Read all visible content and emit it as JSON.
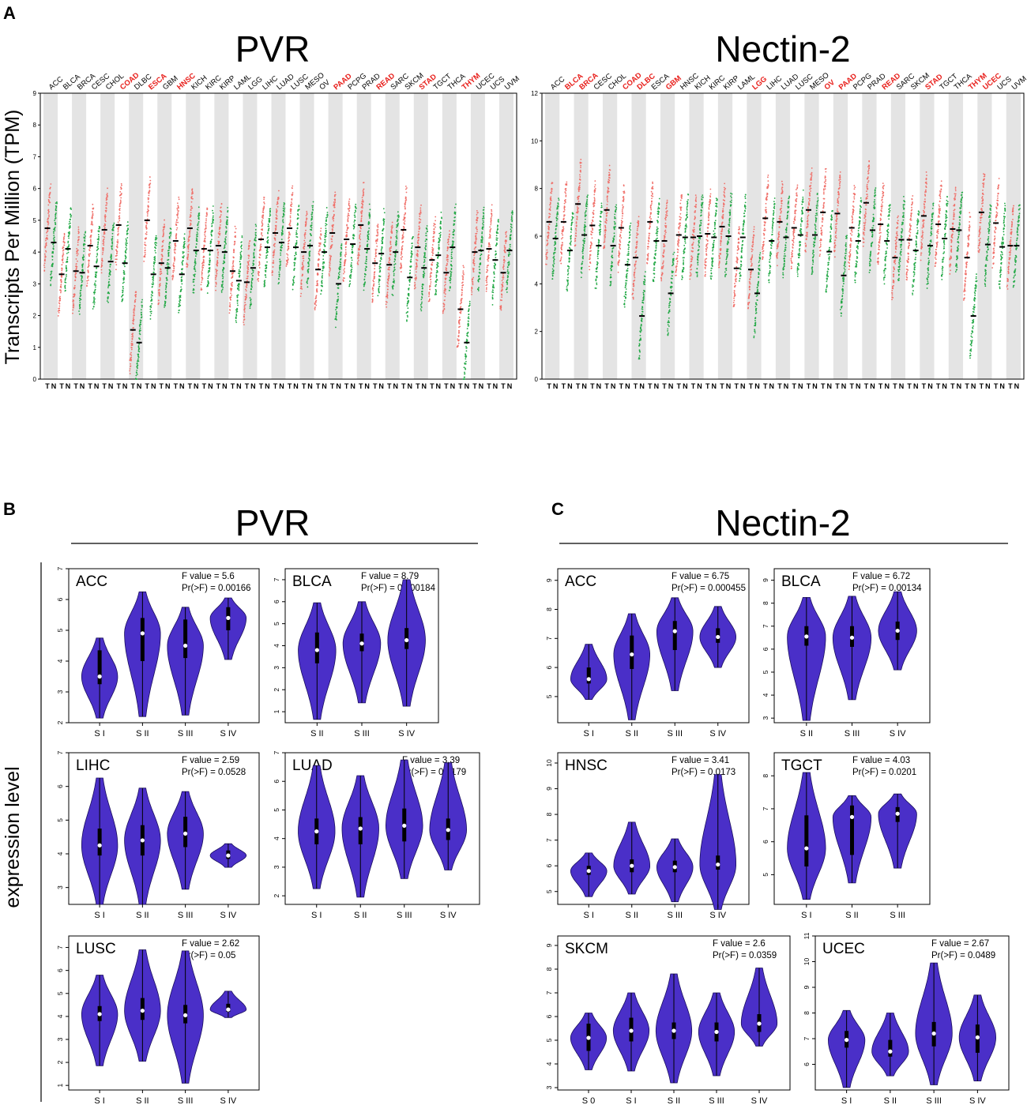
{
  "colors": {
    "tumor": "#f0706a",
    "normal": "#22a845",
    "highlight": "#e8201c",
    "violin": "#4a2fc8",
    "violin_outline": "#1a0e5e",
    "band": "#e4e4e4"
  },
  "panels": {
    "A": {
      "label": "A",
      "y_axis_label": "Transcripts Per Million (TPM)",
      "tumor_letter": "T",
      "normal_letter": "N"
    },
    "B": {
      "label": "B",
      "title": "PVR",
      "y_axis_label": "expression level"
    },
    "C": {
      "label": "C",
      "title": "Nectin-2"
    }
  },
  "chart_data": [
    {
      "id": "pvr-tpm",
      "type": "scatter",
      "title": "PVR",
      "ylabel": "Transcripts Per Million (TPM)",
      "ylim": [
        0,
        9
      ],
      "yticks": [
        0,
        1,
        2,
        3,
        4,
        5,
        6,
        7,
        8,
        9
      ],
      "categories": [
        "ACC",
        "BLCA",
        "BRCA",
        "CESC",
        "CHOL",
        "COAD",
        "DLBC",
        "ESCA",
        "GBM",
        "HNSC",
        "KICH",
        "KIRC",
        "KIRP",
        "LAML",
        "LGG",
        "LIHC",
        "LUAD",
        "LUSC",
        "MESO",
        "OV",
        "PAAD",
        "PCPG",
        "PRAD",
        "READ",
        "SARC",
        "SKCM",
        "STAD",
        "TGCT",
        "THCA",
        "THYM",
        "UCEC",
        "UCS",
        "UVM"
      ],
      "highlighted": [
        "COAD",
        "ESCA",
        "HNSC",
        "PAAD",
        "READ",
        "STAD",
        "THYM"
      ],
      "series": [
        {
          "name": "Tumor (T)",
          "median_values": [
            4.75,
            3.3,
            3.4,
            4.2,
            4.7,
            4.85,
            1.55,
            5.0,
            3.65,
            4.35,
            4.75,
            4.1,
            4.2,
            3.4,
            3.05,
            4.4,
            4.6,
            4.75,
            4.0,
            3.45,
            4.6,
            4.4,
            4.85,
            3.65,
            3.6,
            4.7,
            4.15,
            3.75,
            3.35,
            2.2,
            4.0,
            4.1,
            3.35
          ]
        },
        {
          "name": "Normal (N)",
          "median_values": [
            4.3,
            4.1,
            3.35,
            3.55,
            3.7,
            3.65,
            1.15,
            3.3,
            3.5,
            3.3,
            4.05,
            4.05,
            4.0,
            3.1,
            3.5,
            4.15,
            4.3,
            4.15,
            4.2,
            4.0,
            3.0,
            4.25,
            4.1,
            3.95,
            4.0,
            3.2,
            3.5,
            3.9,
            4.15,
            1.15,
            4.05,
            3.75,
            4.05
          ]
        }
      ]
    },
    {
      "id": "nectin2-tpm",
      "type": "scatter",
      "title": "Nectin-2",
      "ylabel": "Transcripts Per Million (TPM)",
      "ylim": [
        0,
        12
      ],
      "yticks": [
        0,
        2,
        4,
        6,
        8,
        10,
        12
      ],
      "categories": [
        "ACC",
        "BLCA",
        "BRCA",
        "CESC",
        "CHOL",
        "COAD",
        "DLBC",
        "ESCA",
        "GBM",
        "HNSC",
        "KICH",
        "KIRC",
        "KIRP",
        "LAML",
        "LGG",
        "LIHC",
        "LUAD",
        "LUSC",
        "MESO",
        "OV",
        "PAAD",
        "PCPG",
        "PRAD",
        "READ",
        "SARC",
        "SKCM",
        "STAD",
        "TGCT",
        "THCA",
        "THYM",
        "UCEC",
        "UCS",
        "UVM"
      ],
      "highlighted": [
        "BLCA",
        "BRCA",
        "COAD",
        "DLBC",
        "GBM",
        "LGG",
        "OV",
        "PAAD",
        "READ",
        "STAD",
        "THYM",
        "UCEC"
      ],
      "series": [
        {
          "name": "Tumor (T)",
          "median_values": [
            6.6,
            6.6,
            7.35,
            6.45,
            7.1,
            6.35,
            5.1,
            6.6,
            5.8,
            6.05,
            5.95,
            6.1,
            6.4,
            4.65,
            4.6,
            6.75,
            6.6,
            6.35,
            7.1,
            7.0,
            6.95,
            6.35,
            7.4,
            6.5,
            5.1,
            5.85,
            6.85,
            6.5,
            6.3,
            5.1,
            7.0,
            6.55,
            5.6
          ]
        },
        {
          "name": "Normal (N)",
          "median_values": [
            5.9,
            5.4,
            6.05,
            5.6,
            5.6,
            4.8,
            2.65,
            5.8,
            3.6,
            5.95,
            6.0,
            5.95,
            6.0,
            5.95,
            3.6,
            5.8,
            5.95,
            6.05,
            6.05,
            5.35,
            4.35,
            5.8,
            6.25,
            5.8,
            5.85,
            5.4,
            5.6,
            5.9,
            6.25,
            2.65,
            5.65,
            5.55,
            5.6
          ]
        }
      ]
    },
    {
      "id": "pvr-acc",
      "type": "violin",
      "cancer": "ACC",
      "f_label": "F value = 5.6",
      "p_label": "Pr(>F) = 0.00166",
      "ylim": [
        2,
        7
      ],
      "yticks": [
        2,
        3,
        4,
        5,
        6,
        7
      ],
      "categories": [
        "S I",
        "S II",
        "S III",
        "S IV"
      ],
      "stats": [
        {
          "min": 2.15,
          "q1": 3.25,
          "median": 3.5,
          "q3": 4.35,
          "max": 4.75
        },
        {
          "min": 2.2,
          "q1": 4.0,
          "median": 4.9,
          "q3": 5.4,
          "max": 6.25
        },
        {
          "min": 2.25,
          "q1": 4.1,
          "median": 4.5,
          "q3": 5.35,
          "max": 5.75
        },
        {
          "min": 4.05,
          "q1": 5.0,
          "median": 5.4,
          "q3": 5.75,
          "max": 6.05
        }
      ]
    },
    {
      "id": "pvr-blca",
      "type": "violin",
      "cancer": "BLCA",
      "f_label": "F value = 8.79",
      "p_label": "Pr(>F) = 0.000184",
      "ylim": [
        0.5,
        7.5
      ],
      "yticks": [
        1,
        2,
        3,
        4,
        5,
        6,
        7
      ],
      "categories": [
        "S II",
        "S III",
        "S IV"
      ],
      "stats": [
        {
          "min": 0.65,
          "q1": 3.2,
          "median": 3.8,
          "q3": 4.6,
          "max": 5.95
        },
        {
          "min": 1.4,
          "q1": 3.75,
          "median": 4.1,
          "q3": 4.55,
          "max": 6.0
        },
        {
          "min": 1.25,
          "q1": 3.85,
          "median": 4.25,
          "q3": 4.8,
          "max": 7.0
        }
      ]
    },
    {
      "id": "pvr-lihc",
      "type": "violin",
      "cancer": "LIHC",
      "f_label": "F value = 2.59",
      "p_label": "Pr(>F) = 0.0528",
      "ylim": [
        2.5,
        7
      ],
      "yticks": [
        3,
        4,
        5,
        6,
        7
      ],
      "categories": [
        "S I",
        "S II",
        "S III",
        "S IV"
      ],
      "stats": [
        {
          "min": 2.5,
          "q1": 3.95,
          "median": 4.25,
          "q3": 4.75,
          "max": 6.25
        },
        {
          "min": 2.5,
          "q1": 3.95,
          "median": 4.4,
          "q3": 4.85,
          "max": 5.95
        },
        {
          "min": 2.95,
          "q1": 4.2,
          "median": 4.6,
          "q3": 5.1,
          "max": 5.85
        },
        {
          "min": 3.6,
          "q1": 3.85,
          "median": 3.95,
          "q3": 4.1,
          "max": 4.3
        }
      ]
    },
    {
      "id": "pvr-luad",
      "type": "violin",
      "cancer": "LUAD",
      "f_label": "F value = 3.39",
      "p_label": "Pr(>F) = 0.0179",
      "ylim": [
        1.7,
        7
      ],
      "yticks": [
        2,
        3,
        4,
        5,
        6,
        7
      ],
      "categories": [
        "S I",
        "S II",
        "S III",
        "S IV"
      ],
      "stats": [
        {
          "min": 2.25,
          "q1": 3.8,
          "median": 4.25,
          "q3": 4.7,
          "max": 6.55
        },
        {
          "min": 1.95,
          "q1": 3.8,
          "median": 4.35,
          "q3": 4.75,
          "max": 6.2
        },
        {
          "min": 2.6,
          "q1": 3.9,
          "median": 4.45,
          "q3": 5.05,
          "max": 6.75
        },
        {
          "min": 2.9,
          "q1": 3.95,
          "median": 4.3,
          "q3": 4.7,
          "max": 6.65
        }
      ]
    },
    {
      "id": "pvr-lusc",
      "type": "violin",
      "cancer": "LUSC",
      "f_label": "F value = 2.62",
      "p_label": "Pr(>F) = 0.05",
      "ylim": [
        0.8,
        7.5
      ],
      "yticks": [
        1,
        2,
        3,
        4,
        5,
        6,
        7
      ],
      "categories": [
        "S I",
        "S II",
        "S III",
        "S IV"
      ],
      "stats": [
        {
          "min": 1.85,
          "q1": 3.8,
          "median": 4.1,
          "q3": 4.45,
          "max": 5.8
        },
        {
          "min": 2.05,
          "q1": 3.85,
          "median": 4.25,
          "q3": 4.8,
          "max": 6.9
        },
        {
          "min": 1.1,
          "q1": 3.7,
          "median": 4.05,
          "q3": 4.5,
          "max": 6.85
        },
        {
          "min": 3.95,
          "q1": 4.2,
          "median": 4.3,
          "q3": 4.55,
          "max": 5.1
        }
      ]
    },
    {
      "id": "nectin2-acc",
      "type": "violin",
      "cancer": "ACC",
      "f_label": "F value = 6.75",
      "p_label": "Pr(>F) = 0.000455",
      "ylim": [
        4.1,
        9.4
      ],
      "yticks": [
        5,
        6,
        7,
        8,
        9
      ],
      "categories": [
        "S I",
        "S II",
        "S III",
        "S IV"
      ],
      "stats": [
        {
          "min": 4.9,
          "q1": 5.45,
          "median": 5.6,
          "q3": 6.0,
          "max": 6.8
        },
        {
          "min": 4.2,
          "q1": 5.95,
          "median": 6.45,
          "q3": 7.1,
          "max": 7.85
        },
        {
          "min": 5.2,
          "q1": 6.6,
          "median": 7.25,
          "q3": 7.6,
          "max": 8.4
        },
        {
          "min": 6.0,
          "q1": 6.85,
          "median": 7.05,
          "q3": 7.35,
          "max": 8.1
        }
      ]
    },
    {
      "id": "nectin2-blca",
      "type": "violin",
      "cancer": "BLCA",
      "f_label": "F value = 6.72",
      "p_label": "Pr(>F) = 0.00134",
      "ylim": [
        2.8,
        9.5
      ],
      "yticks": [
        3,
        4,
        5,
        6,
        7,
        8,
        9
      ],
      "categories": [
        "S II",
        "S III",
        "S IV"
      ],
      "stats": [
        {
          "min": 2.9,
          "q1": 6.15,
          "median": 6.55,
          "q3": 7.0,
          "max": 8.25
        },
        {
          "min": 3.8,
          "q1": 6.1,
          "median": 6.5,
          "q3": 7.0,
          "max": 8.3
        },
        {
          "min": 5.1,
          "q1": 6.4,
          "median": 6.8,
          "q3": 7.2,
          "max": 8.5
        }
      ]
    },
    {
      "id": "nectin2-hnsc",
      "type": "violin",
      "cancer": "HNSC",
      "f_label": "F value = 3.41",
      "p_label": "Pr(>F) = 0.0173",
      "ylim": [
        4.5,
        10.4
      ],
      "yticks": [
        5,
        6,
        7,
        8,
        9,
        10
      ],
      "categories": [
        "S I",
        "S II",
        "S III",
        "S IV"
      ],
      "stats": [
        {
          "min": 4.8,
          "q1": 5.65,
          "median": 5.8,
          "q3": 6.0,
          "max": 6.5
        },
        {
          "min": 4.9,
          "q1": 5.75,
          "median": 6.0,
          "q3": 6.25,
          "max": 7.7
        },
        {
          "min": 4.6,
          "q1": 5.75,
          "median": 5.95,
          "q3": 6.2,
          "max": 7.05
        },
        {
          "min": 4.3,
          "q1": 5.85,
          "median": 6.05,
          "q3": 6.4,
          "max": 9.55
        }
      ]
    },
    {
      "id": "nectin2-tgct",
      "type": "violin",
      "cancer": "TGCT",
      "f_label": "F value = 4.03",
      "p_label": "Pr(>F) = 0.0201",
      "ylim": [
        4.1,
        8.7
      ],
      "yticks": [
        5,
        6,
        7,
        8
      ],
      "categories": [
        "S I",
        "S II",
        "S III"
      ],
      "stats": [
        {
          "min": 4.25,
          "q1": 5.25,
          "median": 5.8,
          "q3": 6.8,
          "max": 8.1
        },
        {
          "min": 4.75,
          "q1": 5.6,
          "median": 6.75,
          "q3": 7.1,
          "max": 7.4
        },
        {
          "min": 5.2,
          "q1": 6.6,
          "median": 6.85,
          "q3": 7.05,
          "max": 7.45
        }
      ]
    },
    {
      "id": "nectin2-skcm",
      "type": "violin",
      "cancer": "SKCM",
      "f_label": "F value = 2.6",
      "p_label": "Pr(>F) = 0.0359",
      "ylim": [
        2.9,
        9.4
      ],
      "yticks": [
        3,
        4,
        5,
        6,
        7,
        8,
        9
      ],
      "categories": [
        "S 0",
        "S I",
        "S II",
        "S III",
        "S IV"
      ],
      "stats": [
        {
          "min": 3.75,
          "q1": 4.55,
          "median": 5.1,
          "q3": 5.7,
          "max": 6.15
        },
        {
          "min": 3.7,
          "q1": 4.95,
          "median": 5.4,
          "q3": 5.95,
          "max": 7.0
        },
        {
          "min": 3.2,
          "q1": 5.05,
          "median": 5.4,
          "q3": 5.75,
          "max": 7.8
        },
        {
          "min": 3.5,
          "q1": 4.95,
          "median": 5.35,
          "q3": 5.75,
          "max": 7.0
        },
        {
          "min": 4.75,
          "q1": 5.35,
          "median": 5.7,
          "q3": 6.1,
          "max": 8.05
        }
      ]
    },
    {
      "id": "nectin2-ucec",
      "type": "violin",
      "cancer": "UCEC",
      "f_label": "F value = 2.67",
      "p_label": "Pr(>F) = 0.0489",
      "ylim": [
        5,
        11
      ],
      "yticks": [
        6,
        7,
        8,
        9,
        10,
        11
      ],
      "categories": [
        "S I",
        "S II",
        "S III",
        "S IV"
      ],
      "stats": [
        {
          "min": 5.1,
          "q1": 6.65,
          "median": 6.95,
          "q3": 7.3,
          "max": 8.1
        },
        {
          "min": 5.55,
          "q1": 6.3,
          "median": 6.5,
          "q3": 6.95,
          "max": 8.0
        },
        {
          "min": 5.2,
          "q1": 6.7,
          "median": 7.2,
          "q3": 7.65,
          "max": 9.95
        },
        {
          "min": 5.35,
          "q1": 6.45,
          "median": 7.05,
          "q3": 7.55,
          "max": 8.7
        }
      ]
    }
  ]
}
